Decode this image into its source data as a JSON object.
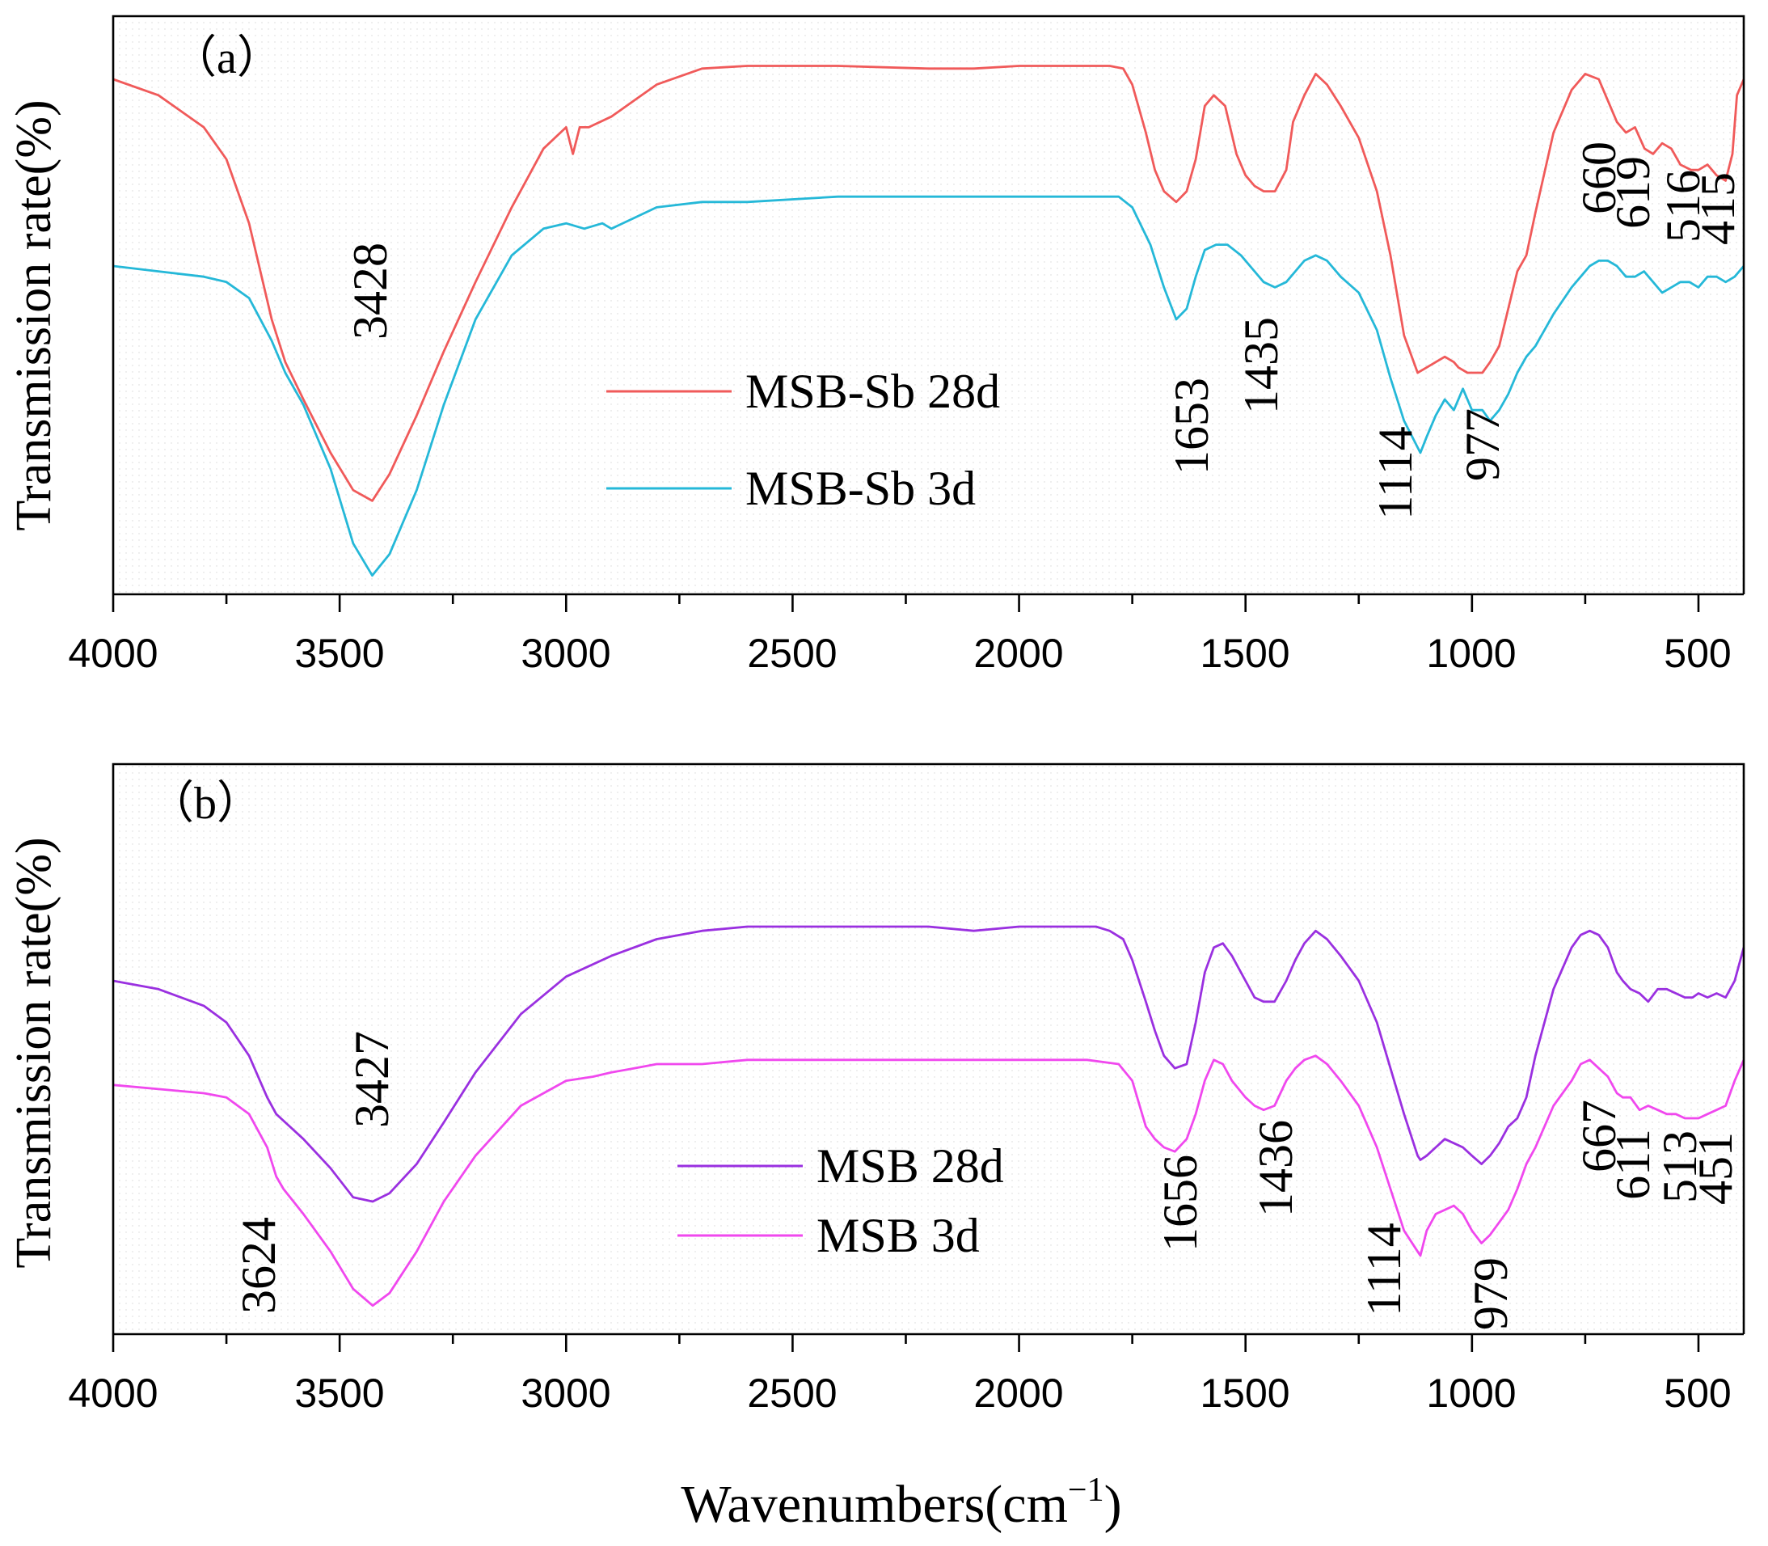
{
  "chart_data": [
    {
      "id": "a",
      "type": "line",
      "panel_label": "（a）",
      "ylabel": "Transmission rate(%)",
      "xlim": [
        4000,
        400
      ],
      "xticks": [
        4000,
        3500,
        3000,
        2500,
        2000,
        1500,
        1000,
        500
      ],
      "xtick_labels": [
        "4000",
        "3500",
        "3000",
        "2500",
        "2000",
        "1500",
        "1000",
        "500"
      ],
      "ylim": [
        0,
        100
      ],
      "series": [
        {
          "name": "MSB-Sb 28d",
          "color": "#f05a5a",
          "x": [
            4000,
            3900,
            3800,
            3750,
            3700,
            3650,
            3620,
            3580,
            3520,
            3470,
            3428,
            3390,
            3330,
            3270,
            3200,
            3120,
            3050,
            3000,
            2985,
            2970,
            2950,
            2900,
            2850,
            2800,
            2700,
            2600,
            2400,
            2200,
            2100,
            2000,
            1900,
            1850,
            1800,
            1770,
            1750,
            1720,
            1700,
            1680,
            1653,
            1630,
            1610,
            1590,
            1570,
            1545,
            1520,
            1500,
            1480,
            1460,
            1435,
            1410,
            1395,
            1370,
            1345,
            1320,
            1290,
            1250,
            1210,
            1180,
            1150,
            1120,
            1100,
            1080,
            1060,
            1040,
            1030,
            1010,
            990,
            977,
            960,
            940,
            920,
            900,
            880,
            860,
            820,
            780,
            750,
            720,
            700,
            680,
            660,
            640,
            619,
            600,
            580,
            560,
            540,
            516,
            500,
            480,
            460,
            440,
            425,
            415,
            400
          ],
          "y": [
            95,
            92,
            86,
            80,
            68,
            50,
            42,
            35,
            25,
            18,
            16,
            21,
            32,
            44,
            57,
            71,
            82,
            86,
            81,
            86,
            86,
            88,
            91,
            94,
            97,
            97.5,
            97.5,
            97,
            97,
            97.5,
            97.5,
            97.5,
            97.5,
            97,
            94,
            85,
            78,
            74,
            72,
            74,
            80,
            90,
            92,
            90,
            81,
            77,
            75,
            74,
            74,
            78,
            87,
            92,
            96,
            94,
            90,
            84,
            74,
            62,
            47,
            40,
            41,
            42,
            43,
            42,
            41,
            40,
            40,
            40,
            42,
            45,
            52,
            59,
            62,
            70,
            85,
            93,
            96,
            95,
            91,
            87,
            85,
            86,
            82,
            81,
            83,
            82,
            79,
            78,
            78,
            79,
            77,
            76,
            81,
            92,
            95
          ]
        },
        {
          "name": "MSB-Sb 3d",
          "color": "#25b8d8",
          "x": [
            4000,
            3900,
            3800,
            3750,
            3700,
            3650,
            3620,
            3580,
            3520,
            3470,
            3428,
            3390,
            3330,
            3270,
            3200,
            3120,
            3050,
            3000,
            2960,
            2920,
            2900,
            2850,
            2800,
            2700,
            2600,
            2400,
            2200,
            2000,
            1850,
            1780,
            1750,
            1710,
            1680,
            1653,
            1630,
            1610,
            1590,
            1565,
            1540,
            1510,
            1480,
            1460,
            1435,
            1410,
            1390,
            1370,
            1345,
            1320,
            1290,
            1250,
            1210,
            1180,
            1150,
            1120,
            1114,
            1100,
            1080,
            1060,
            1040,
            1020,
            1000,
            977,
            960,
            940,
            920,
            900,
            880,
            860,
            820,
            780,
            760,
            740,
            720,
            700,
            680,
            660,
            640,
            620,
            600,
            580,
            560,
            540,
            520,
            500,
            480,
            460,
            440,
            420,
            400
          ],
          "y": [
            60,
            59,
            58,
            57,
            54,
            46,
            40,
            34,
            22,
            8,
            2,
            6,
            18,
            34,
            50,
            62,
            67,
            68,
            67,
            68,
            67,
            69,
            71,
            72,
            72,
            73,
            73,
            73,
            73,
            73,
            71,
            64,
            56,
            50,
            52,
            58,
            63,
            64,
            64,
            62,
            59,
            57,
            56,
            57,
            59,
            61,
            62,
            61,
            58,
            55,
            48,
            39,
            31,
            26,
            25,
            28,
            32,
            35,
            33,
            37,
            33,
            33,
            31,
            33,
            36,
            40,
            43,
            45,
            51,
            56,
            58,
            60,
            61,
            61,
            60,
            58,
            58,
            59,
            57,
            55,
            56,
            57,
            57,
            56,
            58,
            58,
            57,
            58,
            60
          ]
        }
      ],
      "annotations": [
        "3428",
        "1653",
        "1435",
        "1114",
        "977",
        "660",
        "619",
        "516",
        "415"
      ]
    },
    {
      "id": "b",
      "type": "line",
      "panel_label": "（b）",
      "ylabel": "Transmission rate(%)",
      "xlim": [
        4000,
        400
      ],
      "xticks": [
        4000,
        3500,
        3000,
        2500,
        2000,
        1500,
        1000,
        500
      ],
      "xtick_labels": [
        "4000",
        "3500",
        "3000",
        "2500",
        "2000",
        "1500",
        "1000",
        "500"
      ],
      "ylim": [
        0,
        100
      ],
      "series": [
        {
          "name": "MSB 28d",
          "color": "#9a30e0",
          "x": [
            4000,
            3900,
            3800,
            3750,
            3700,
            3660,
            3640,
            3620,
            3580,
            3520,
            3470,
            3427,
            3390,
            3330,
            3270,
            3200,
            3100,
            3000,
            2900,
            2800,
            2700,
            2600,
            2400,
            2200,
            2100,
            2000,
            1900,
            1830,
            1800,
            1770,
            1750,
            1720,
            1700,
            1680,
            1656,
            1630,
            1610,
            1590,
            1570,
            1550,
            1530,
            1500,
            1480,
            1460,
            1436,
            1410,
            1390,
            1370,
            1345,
            1320,
            1290,
            1250,
            1210,
            1180,
            1150,
            1120,
            1114,
            1100,
            1080,
            1060,
            1040,
            1020,
            1000,
            979,
            960,
            940,
            920,
            900,
            880,
            860,
            820,
            780,
            760,
            740,
            720,
            700,
            680,
            667,
            650,
            630,
            611,
            590,
            570,
            550,
            530,
            513,
            500,
            480,
            460,
            440,
            420,
            400
          ],
          "y": [
            80,
            78,
            74,
            70,
            62,
            52,
            48,
            46,
            42,
            35,
            28,
            27,
            29,
            36,
            46,
            58,
            72,
            81,
            86,
            90,
            92,
            93,
            93,
            93,
            92,
            93,
            93,
            93,
            92,
            90,
            85,
            75,
            68,
            62,
            59,
            60,
            70,
            82,
            88,
            89,
            86,
            80,
            76,
            75,
            75,
            80,
            85,
            89,
            92,
            90,
            86,
            80,
            70,
            59,
            48,
            38,
            37,
            38,
            40,
            42,
            41,
            40,
            38,
            36,
            38,
            41,
            45,
            47,
            52,
            62,
            78,
            88,
            91,
            92,
            91,
            88,
            82,
            80,
            78,
            77,
            75,
            78,
            78,
            77,
            76,
            76,
            77,
            76,
            77,
            76,
            80,
            88
          ]
        },
        {
          "name": "MSB 3d",
          "color": "#f048ee",
          "x": [
            4000,
            3900,
            3800,
            3750,
            3700,
            3660,
            3640,
            3624,
            3580,
            3520,
            3470,
            3427,
            3390,
            3330,
            3270,
            3200,
            3100,
            3000,
            2940,
            2900,
            2850,
            2800,
            2700,
            2600,
            2400,
            2200,
            2000,
            1850,
            1780,
            1750,
            1720,
            1700,
            1680,
            1656,
            1630,
            1610,
            1590,
            1570,
            1550,
            1530,
            1500,
            1480,
            1460,
            1436,
            1410,
            1390,
            1370,
            1345,
            1320,
            1290,
            1250,
            1210,
            1180,
            1150,
            1120,
            1114,
            1100,
            1080,
            1060,
            1040,
            1020,
            1000,
            979,
            960,
            940,
            920,
            900,
            880,
            860,
            820,
            780,
            760,
            740,
            720,
            700,
            680,
            667,
            650,
            630,
            611,
            590,
            570,
            550,
            530,
            513,
            500,
            480,
            460,
            440,
            420,
            400
          ],
          "y": [
            55,
            54,
            53,
            52,
            48,
            40,
            33,
            30,
            24,
            15,
            6,
            2,
            5,
            15,
            27,
            38,
            50,
            56,
            57,
            58,
            59,
            60,
            60,
            61,
            61,
            61,
            61,
            61,
            60,
            56,
            45,
            42,
            40,
            39,
            42,
            48,
            56,
            61,
            60,
            56,
            52,
            50,
            49,
            50,
            56,
            59,
            61,
            62,
            60,
            56,
            50,
            40,
            30,
            20,
            15,
            14,
            20,
            24,
            25,
            26,
            24,
            20,
            17,
            19,
            22,
            25,
            30,
            36,
            40,
            50,
            56,
            60,
            61,
            59,
            57,
            53,
            52,
            52,
            49,
            50,
            49,
            48,
            48,
            47,
            47,
            47,
            48,
            49,
            50,
            56,
            61
          ]
        }
      ],
      "annotations": [
        "3427",
        "3624",
        "1656",
        "1436",
        "1114",
        "979",
        "667",
        "611",
        "513",
        "451"
      ]
    }
  ],
  "xlabel": "Wavenumbers(cm",
  "xlabel_sup": "−1",
  "xlabel_close": ")"
}
